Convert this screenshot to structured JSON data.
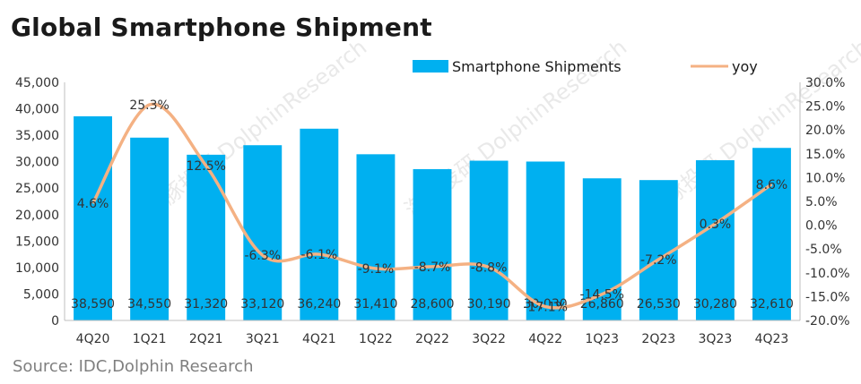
{
  "chart_data": {
    "type": "bar",
    "title": "Global Smartphone Shipment",
    "source": "Source: IDC,Dolphin Research",
    "watermark": "海豚投研 DolphinResearch",
    "categories": [
      "4Q20",
      "1Q21",
      "2Q21",
      "3Q21",
      "4Q21",
      "1Q22",
      "2Q22",
      "3Q22",
      "4Q22",
      "1Q23",
      "2Q23",
      "3Q23",
      "4Q23"
    ],
    "series": [
      {
        "name": "Smartphone Shipments",
        "type": "bar",
        "axis": "left",
        "color": "#00B0F0",
        "values": [
          38590,
          34550,
          31320,
          33120,
          36240,
          31410,
          28600,
          30190,
          30030,
          26860,
          26530,
          30280,
          32610
        ],
        "labels": [
          "38,590",
          "34,550",
          "31,320",
          "33,120",
          "36,240",
          "31,410",
          "28,600",
          "30,190",
          "30,030",
          "26,860",
          "26,530",
          "30,280",
          "32,610"
        ]
      },
      {
        "name": "yoy",
        "type": "line",
        "axis": "right",
        "color": "#F4B183",
        "values": [
          4.6,
          25.3,
          12.5,
          -6.3,
          -6.1,
          -9.1,
          -8.7,
          -8.8,
          -17.1,
          -14.5,
          -7.2,
          0.3,
          8.6
        ],
        "labels": [
          "4.6%",
          "25.3%",
          "12.5%",
          "-6.3%",
          "-6.1%",
          "-9.1%",
          "-8.7%",
          "-8.8%",
          "-17.1%",
          "-14.5%",
          "-7.2%",
          "0.3%",
          "8.6%"
        ]
      }
    ],
    "y_left": {
      "min": 0,
      "max": 45000,
      "ticks": [
        0,
        5000,
        10000,
        15000,
        20000,
        25000,
        30000,
        35000,
        40000,
        45000
      ],
      "tick_labels": [
        "0",
        "5,000",
        "10,000",
        "15,000",
        "20,000",
        "25,000",
        "30,000",
        "35,000",
        "40,000",
        "45,000"
      ]
    },
    "y_right": {
      "min": -20,
      "max": 30,
      "ticks": [
        30,
        25,
        20,
        15,
        10,
        5,
        0,
        -5,
        -10,
        -15,
        -20
      ],
      "tick_labels": [
        "30.0%",
        "25.0%",
        "20.0%",
        "15.0%",
        "10.0%",
        "5.0%",
        "0.0%",
        "-5.0%",
        "-10.0%",
        "-15.0%",
        "-20.0%"
      ]
    },
    "legend": {
      "position": "top",
      "items": [
        "Smartphone Shipments",
        "yoy"
      ]
    },
    "grid": false
  }
}
